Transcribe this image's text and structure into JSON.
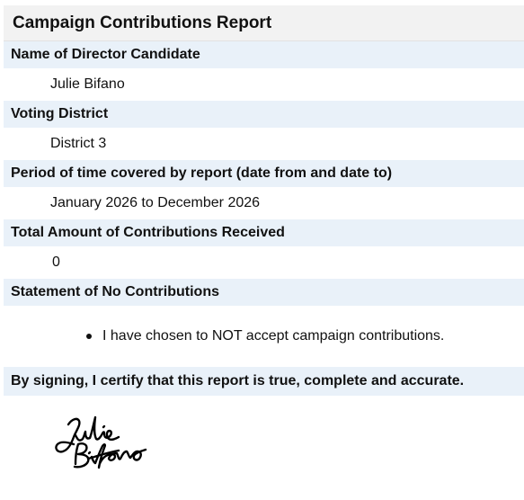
{
  "report": {
    "title": "Campaign Contributions Report",
    "fields": [
      {
        "label": "Name of Director Candidate",
        "value": "Julie Bifano"
      },
      {
        "label": "Voting District",
        "value": "District 3"
      },
      {
        "label": "Period of time covered by report (date from and date to)",
        "value": "January 2026 to December 2026"
      },
      {
        "label": "Total Amount of Contributions Received",
        "value": "0"
      }
    ],
    "statement": {
      "label": "Statement of No Contributions",
      "items": [
        "I have chosen to NOT accept campaign contributions."
      ]
    },
    "certification": "By signing, I certify that this report is true, complete and accurate.",
    "signature": {
      "name": "Julie Bifano",
      "ink_color": "#000000"
    }
  },
  "colors": {
    "title_background": "#f2f2f2",
    "label_background": "#e9f1f9",
    "value_background": "#ffffff",
    "text": "#111111"
  }
}
